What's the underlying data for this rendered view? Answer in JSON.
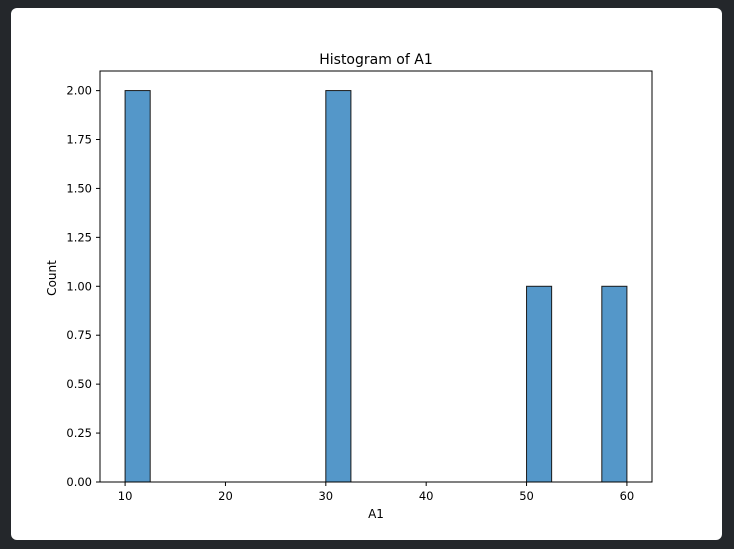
{
  "chart_data": {
    "type": "bar",
    "title": "Histogram of A1",
    "xlabel": "A1",
    "ylabel": "Count",
    "xlim": [
      7.5,
      62.5
    ],
    "ylim": [
      0,
      2.1
    ],
    "xticks": [
      10,
      20,
      30,
      40,
      50,
      60
    ],
    "yticks": [
      0,
      0.25,
      0.5,
      0.75,
      1.0,
      1.25,
      1.5,
      1.75,
      2.0
    ],
    "ytick_labels": [
      "0.00",
      "0.25",
      "0.50",
      "0.75",
      "1.00",
      "1.25",
      "1.50",
      "1.75",
      "2.00"
    ],
    "bins": [
      {
        "x0": 10,
        "x1": 12.5,
        "count": 2
      },
      {
        "x0": 30,
        "x1": 32.5,
        "count": 2
      },
      {
        "x0": 50,
        "x1": 52.5,
        "count": 1
      },
      {
        "x0": 57.5,
        "x1": 60,
        "count": 1
      }
    ],
    "bar_color": "#5497c9",
    "edge_color": "#1a1a1a",
    "grid": false
  }
}
